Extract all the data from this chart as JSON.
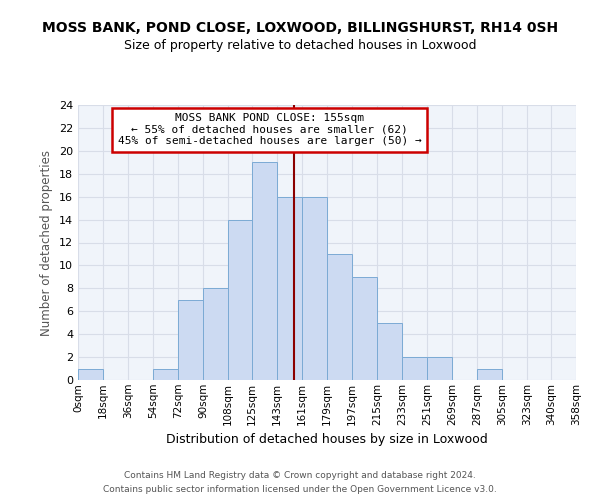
{
  "title": "MOSS BANK, POND CLOSE, LOXWOOD, BILLINGSHURST, RH14 0SH",
  "subtitle": "Size of property relative to detached houses in Loxwood",
  "xlabel": "Distribution of detached houses by size in Loxwood",
  "ylabel": "Number of detached properties",
  "bin_edges": [
    0,
    18,
    36,
    54,
    72,
    90,
    108,
    125,
    143,
    161,
    179,
    197,
    215,
    233,
    251,
    269,
    287,
    305,
    323,
    340,
    358
  ],
  "counts": [
    1,
    0,
    0,
    1,
    7,
    8,
    14,
    19,
    16,
    16,
    11,
    9,
    5,
    2,
    2,
    0,
    1,
    0,
    0,
    0
  ],
  "bar_color": "#ccdaf2",
  "bar_edge_color": "#7baad4",
  "property_size": 155,
  "vline_color": "#8b0000",
  "annotation_title": "MOSS BANK POND CLOSE: 155sqm",
  "annotation_line1": "← 55% of detached houses are smaller (62)",
  "annotation_line2": "45% of semi-detached houses are larger (50) →",
  "annotation_box_color": "#ffffff",
  "annotation_box_edge": "#cc0000",
  "ylim": [
    0,
    24
  ],
  "yticks": [
    0,
    2,
    4,
    6,
    8,
    10,
    12,
    14,
    16,
    18,
    20,
    22,
    24
  ],
  "tick_labels": [
    "0sqm",
    "18sqm",
    "36sqm",
    "54sqm",
    "72sqm",
    "90sqm",
    "108sqm",
    "125sqm",
    "143sqm",
    "161sqm",
    "179sqm",
    "197sqm",
    "215sqm",
    "233sqm",
    "251sqm",
    "269sqm",
    "287sqm",
    "305sqm",
    "323sqm",
    "340sqm",
    "358sqm"
  ],
  "footer1": "Contains HM Land Registry data © Crown copyright and database right 2024.",
  "footer2": "Contains public sector information licensed under the Open Government Licence v3.0.",
  "grid_color": "#d8dde8",
  "bg_color": "#ffffff",
  "plot_bg_color": "#f0f4fa",
  "title_fontsize": 10,
  "subtitle_fontsize": 9
}
